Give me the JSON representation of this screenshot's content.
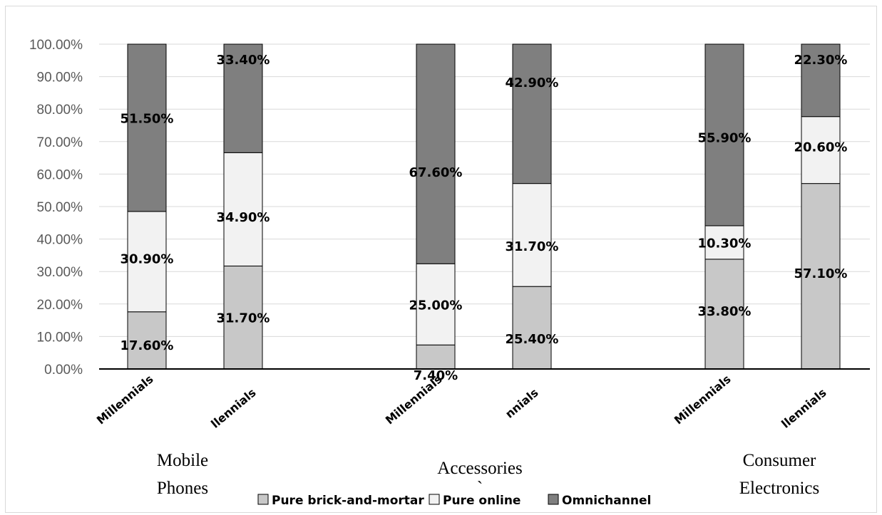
{
  "chart_data": {
    "type": "bar",
    "stacked": true,
    "ylim": [
      0,
      100
    ],
    "yticks": [
      "0.00%",
      "10.00%",
      "20.00%",
      "30.00%",
      "40.00%",
      "50.00%",
      "60.00%",
      "70.00%",
      "80.00%",
      "90.00%",
      "100.00%"
    ],
    "grid": true,
    "legend_position": "bottom",
    "categories": [
      "Millennials",
      "Millennials",
      "Millennials",
      "Millennials",
      "Millennials",
      "Millennials"
    ],
    "category_labels_visible": [
      "Millennials",
      "llennials",
      "Millennials",
      "nnials",
      "Millennials",
      "llennials"
    ],
    "groups": [
      {
        "label_line1": "Mobile",
        "label_line2": "Phones",
        "bars": [
          0,
          1
        ]
      },
      {
        "label_line1": "Accessories",
        "label_line2": "`",
        "bars": [
          2,
          3
        ]
      },
      {
        "label_line1": "Consumer",
        "label_line2": "Electronics",
        "bars": [
          4,
          5
        ]
      }
    ],
    "series": [
      {
        "name": "Pure brick-and-mortar",
        "color": "#c8c8c8",
        "values": [
          17.6,
          31.7,
          7.4,
          25.4,
          33.8,
          57.1
        ],
        "labels": [
          "17.60%",
          "31.70%",
          "7.40%",
          "25.40%",
          "33.80%",
          "57.10%"
        ]
      },
      {
        "name": "Pure online",
        "color": "#f2f2f2",
        "values": [
          30.9,
          34.9,
          25.0,
          31.7,
          10.3,
          20.6
        ],
        "labels": [
          "30.90%",
          "34.90%",
          "25.00%",
          "31.70%",
          "10.30%",
          "20.60%"
        ]
      },
      {
        "name": "Omnichannel",
        "color": "#7f7f7f",
        "values": [
          51.5,
          33.4,
          67.6,
          42.9,
          55.9,
          22.3
        ],
        "labels": [
          "51.50%",
          "33.40%",
          "67.60%",
          "42.90%",
          "55.90%",
          "22.30%"
        ]
      }
    ]
  }
}
